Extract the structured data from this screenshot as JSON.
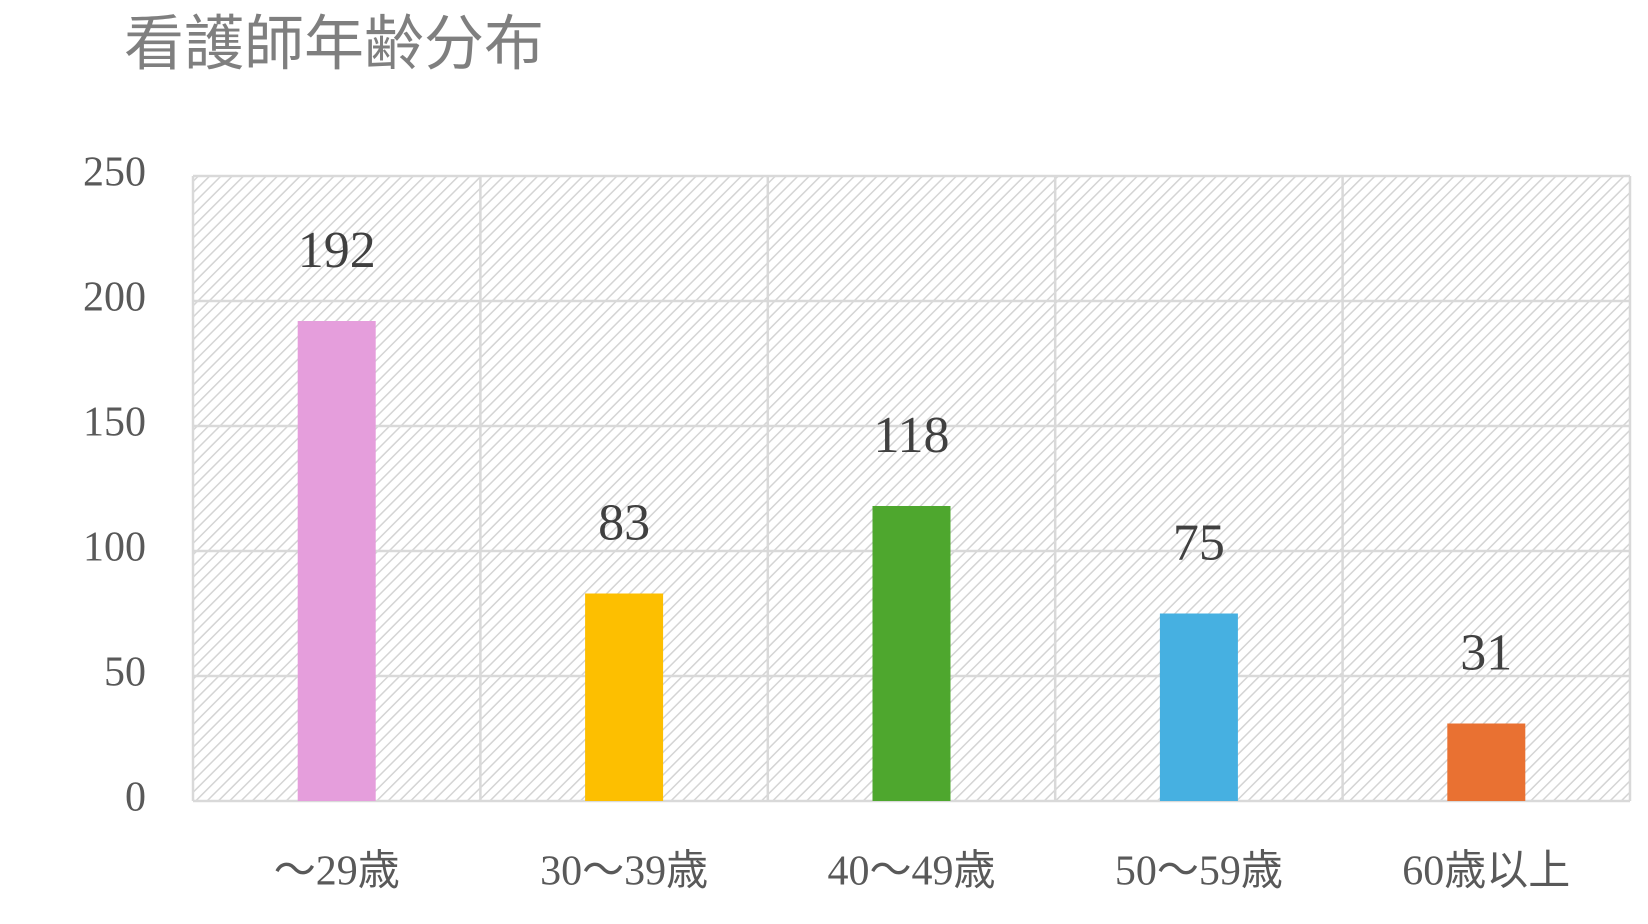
{
  "chart_data": {
    "type": "bar",
    "title": "看護師年齢分布",
    "categories": [
      "～29歳",
      "30～39歳",
      "40～49歳",
      "50～59歳",
      "60歳以上"
    ],
    "values": [
      192,
      83,
      118,
      75,
      31
    ],
    "colors": [
      "#e59edc",
      "#fdbf00",
      "#4ea72e",
      "#46b0e1",
      "#e97132"
    ],
    "ylim": [
      0,
      250
    ],
    "yticks": [
      0,
      50,
      100,
      150,
      200,
      250
    ],
    "grid": true
  }
}
